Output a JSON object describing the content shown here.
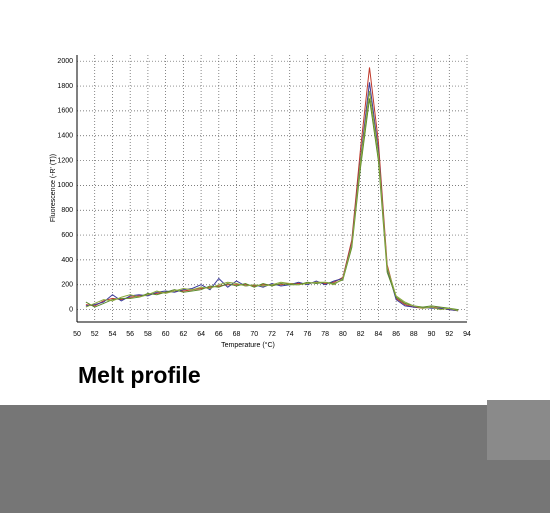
{
  "chart_data": {
    "type": "line",
    "title": "Melt profile",
    "x_label": "Temperature (°C)",
    "y_label": "Fluorescence (-R' (T))",
    "x": [
      51,
      52,
      53,
      54,
      55,
      56,
      57,
      58,
      59,
      60,
      61,
      62,
      63,
      64,
      65,
      66,
      67,
      68,
      69,
      70,
      71,
      72,
      73,
      74,
      75,
      76,
      77,
      78,
      79,
      80,
      81,
      82,
      83,
      84,
      85,
      86,
      87,
      88,
      89,
      90,
      91,
      92,
      93
    ],
    "series": [
      {
        "color": "#c0392b",
        "values": [
          40,
          30,
          70,
          90,
          80,
          100,
          110,
          120,
          130,
          140,
          150,
          150,
          160,
          170,
          180,
          190,
          200,
          200,
          200,
          190,
          200,
          200,
          200,
          210,
          210,
          210,
          220,
          210,
          220,
          260,
          560,
          1300,
          1950,
          1350,
          360,
          90,
          40,
          20,
          10,
          20,
          10,
          0,
          -10
        ]
      },
      {
        "color": "#3b3b9a",
        "values": [
          30,
          40,
          60,
          120,
          70,
          110,
          120,
          110,
          140,
          150,
          140,
          160,
          170,
          200,
          160,
          250,
          180,
          230,
          190,
          200,
          180,
          210,
          190,
          200,
          220,
          200,
          230,
          200,
          230,
          250,
          530,
          1220,
          1830,
          1280,
          330,
          80,
          30,
          20,
          20,
          10,
          10,
          0,
          -10
        ]
      },
      {
        "color": "#5a8a2a",
        "values": [
          60,
          20,
          50,
          80,
          90,
          90,
          100,
          130,
          120,
          140,
          160,
          140,
          150,
          160,
          190,
          180,
          210,
          190,
          210,
          180,
          210,
          190,
          210,
          200,
          200,
          220,
          210,
          220,
          210,
          240,
          500,
          1150,
          1700,
          1200,
          300,
          100,
          50,
          30,
          20,
          30,
          20,
          10,
          0
        ]
      },
      {
        "color": "#8aa83c",
        "values": [
          20,
          50,
          80,
          70,
          100,
          120,
          100,
          120,
          150,
          130,
          150,
          170,
          160,
          180,
          170,
          200,
          220,
          210,
          190,
          200,
          190,
          200,
          220,
          210,
          200,
          210,
          220,
          220,
          200,
          250,
          520,
          1200,
          1760,
          1250,
          340,
          110,
          60,
          30,
          10,
          20,
          0,
          10,
          -10
        ]
      }
    ],
    "xlim": [
      50,
      94
    ],
    "xticks": [
      50,
      52,
      54,
      56,
      58,
      60,
      62,
      64,
      66,
      68,
      70,
      72,
      74,
      76,
      78,
      80,
      82,
      84,
      86,
      88,
      90,
      92,
      94
    ],
    "ylim": [
      -100,
      2050
    ],
    "yticks": [
      0,
      200,
      400,
      600,
      800,
      1000,
      1200,
      1400,
      1600,
      1800,
      2000
    ],
    "grid": true
  }
}
